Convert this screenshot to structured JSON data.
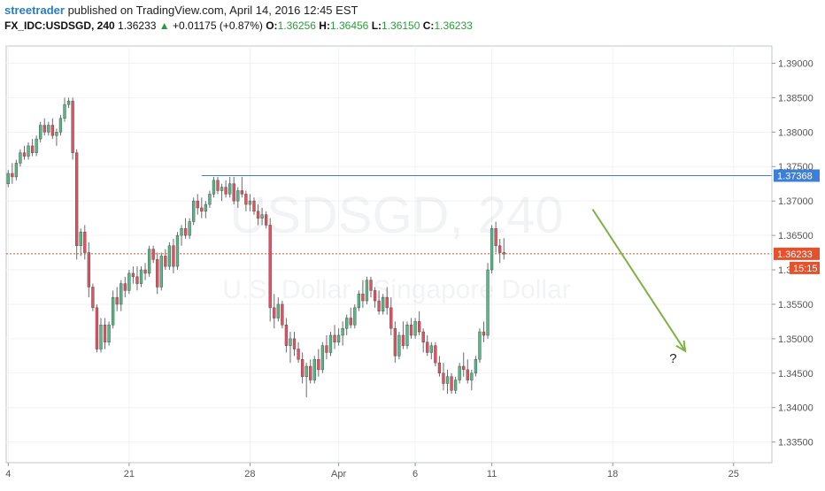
{
  "header": {
    "author": "streetrader",
    "published_text": "published on TradingView.com, April 14, 2016 12:45 EST",
    "symbol": "FX_IDC:USDSGD, 240",
    "last": "1.36233",
    "change": "+0.01175 (+0.87%)",
    "open_label": "O:",
    "open": "1.36256",
    "high_label": "H:",
    "high": "1.36456",
    "low_label": "L:",
    "low": "1.36150",
    "close_label": "C:",
    "close": "1.36233"
  },
  "watermark": {
    "line1": "USDSGD, 240",
    "line2": "U.S. Dollar / Singapore Dollar"
  },
  "chart_data": {
    "type": "candlestick",
    "colors": {
      "up": "#53b987",
      "down": "#eb4d5c",
      "hline": "#3d7fd6",
      "price_line": "#e4512b",
      "arrow": "#7cb342"
    },
    "y_range": [
      1.332,
      1.3925
    ],
    "y_ticks": [
      {
        "v": 1.39,
        "label": "1.39000"
      },
      {
        "v": 1.385,
        "label": "1.38500"
      },
      {
        "v": 1.38,
        "label": "1.38000"
      },
      {
        "v": 1.375,
        "label": "1.37500"
      },
      {
        "v": 1.37,
        "label": "1.37000"
      },
      {
        "v": 1.365,
        "label": "1.36500"
      },
      {
        "v": 1.36,
        "label": "1.36000"
      },
      {
        "v": 1.355,
        "label": "1.35500"
      },
      {
        "v": 1.35,
        "label": "1.35000"
      },
      {
        "v": 1.345,
        "label": "1.34500"
      },
      {
        "v": 1.34,
        "label": "1.34000"
      },
      {
        "v": 1.335,
        "label": "1.33500"
      }
    ],
    "x_ticks": [
      {
        "i": 0,
        "label": "4"
      },
      {
        "i": 30,
        "label": "21"
      },
      {
        "i": 60,
        "label": "28"
      },
      {
        "i": 82,
        "label": "Apr"
      },
      {
        "i": 101,
        "label": "6"
      },
      {
        "i": 120,
        "label": "11"
      },
      {
        "i": 150,
        "label": "18"
      },
      {
        "i": 180,
        "label": "25"
      }
    ],
    "x_slots": 190,
    "horizontal_level": 1.37368,
    "horizontal_level_label": "1.37368",
    "horizontal_level_start": 48,
    "last_price": 1.36233,
    "last_price_label": "1.36233",
    "countdown": "15:15",
    "annotation_text": "?",
    "arrow": {
      "from_i": 145,
      "from_v": 1.3688,
      "to_i": 168,
      "to_v": 1.3482
    },
    "question_at": {
      "i": 165,
      "v": 1.3465
    },
    "ohlc": [
      [
        1.3725,
        1.3745,
        1.372,
        1.374
      ],
      [
        1.374,
        1.3755,
        1.3725,
        1.3735
      ],
      [
        1.3735,
        1.376,
        1.373,
        1.3755
      ],
      [
        1.3755,
        1.3775,
        1.375,
        1.377
      ],
      [
        1.377,
        1.378,
        1.376,
        1.3765
      ],
      [
        1.3765,
        1.3785,
        1.376,
        1.378
      ],
      [
        1.378,
        1.379,
        1.3765,
        1.377
      ],
      [
        1.377,
        1.3795,
        1.3765,
        1.379
      ],
      [
        1.379,
        1.3815,
        1.3785,
        1.381
      ],
      [
        1.381,
        1.382,
        1.3795,
        1.38
      ],
      [
        1.38,
        1.3815,
        1.3795,
        1.381
      ],
      [
        1.381,
        1.382,
        1.379,
        1.3795
      ],
      [
        1.3795,
        1.3805,
        1.378,
        1.38
      ],
      [
        1.38,
        1.3825,
        1.3795,
        1.382
      ],
      [
        1.382,
        1.385,
        1.3815,
        1.384
      ],
      [
        1.384,
        1.385,
        1.3835,
        1.3845
      ],
      [
        1.3845,
        1.385,
        1.376,
        1.377
      ],
      [
        1.377,
        1.3775,
        1.3615,
        1.3635
      ],
      [
        1.3635,
        1.366,
        1.362,
        1.3655
      ],
      [
        1.3655,
        1.3665,
        1.3615,
        1.3625
      ],
      [
        1.3625,
        1.364,
        1.356,
        1.3575
      ],
      [
        1.3575,
        1.358,
        1.354,
        1.3545
      ],
      [
        1.3545,
        1.355,
        1.348,
        1.3485
      ],
      [
        1.3485,
        1.353,
        1.348,
        1.352
      ],
      [
        1.352,
        1.353,
        1.3485,
        1.3495
      ],
      [
        1.3495,
        1.3525,
        1.349,
        1.352
      ],
      [
        1.352,
        1.357,
        1.3515,
        1.356
      ],
      [
        1.356,
        1.3575,
        1.354,
        1.355
      ],
      [
        1.355,
        1.3585,
        1.354,
        1.358
      ],
      [
        1.358,
        1.359,
        1.356,
        1.357
      ],
      [
        1.357,
        1.36,
        1.3565,
        1.3595
      ],
      [
        1.3595,
        1.3605,
        1.358,
        1.359
      ],
      [
        1.359,
        1.3605,
        1.357,
        1.358
      ],
      [
        1.358,
        1.3605,
        1.3575,
        1.36
      ],
      [
        1.36,
        1.361,
        1.3585,
        1.3595
      ],
      [
        1.3595,
        1.3635,
        1.359,
        1.363
      ],
      [
        1.363,
        1.3635,
        1.361,
        1.3615
      ],
      [
        1.3615,
        1.3625,
        1.3565,
        1.3575
      ],
      [
        1.3575,
        1.3625,
        1.357,
        1.362
      ],
      [
        1.362,
        1.363,
        1.36,
        1.3605
      ],
      [
        1.3605,
        1.364,
        1.36,
        1.3635
      ],
      [
        1.3635,
        1.3645,
        1.3595,
        1.3605
      ],
      [
        1.3605,
        1.3655,
        1.36,
        1.365
      ],
      [
        1.365,
        1.3665,
        1.3635,
        1.366
      ],
      [
        1.366,
        1.3675,
        1.3645,
        1.365
      ],
      [
        1.365,
        1.3675,
        1.3645,
        1.367
      ],
      [
        1.367,
        1.3705,
        1.3665,
        1.37
      ],
      [
        1.37,
        1.371,
        1.368,
        1.369
      ],
      [
        1.369,
        1.3705,
        1.3675,
        1.3685
      ],
      [
        1.3685,
        1.37,
        1.3675,
        1.3695
      ],
      [
        1.3695,
        1.3715,
        1.369,
        1.371
      ],
      [
        1.371,
        1.3735,
        1.3705,
        1.373
      ],
      [
        1.373,
        1.3735,
        1.371,
        1.3715
      ],
      [
        1.3715,
        1.3725,
        1.37,
        1.372
      ],
      [
        1.372,
        1.373,
        1.3705,
        1.371
      ],
      [
        1.371,
        1.3735,
        1.3705,
        1.3725
      ],
      [
        1.3725,
        1.3735,
        1.3695,
        1.37
      ],
      [
        1.37,
        1.372,
        1.369,
        1.3715
      ],
      [
        1.3715,
        1.3735,
        1.3705,
        1.371
      ],
      [
        1.371,
        1.3715,
        1.3685,
        1.3695
      ],
      [
        1.3695,
        1.371,
        1.3685,
        1.37
      ],
      [
        1.37,
        1.3705,
        1.368,
        1.3685
      ],
      [
        1.3685,
        1.3695,
        1.3665,
        1.3675
      ],
      [
        1.3675,
        1.369,
        1.3665,
        1.368
      ],
      [
        1.368,
        1.3685,
        1.366,
        1.3665
      ],
      [
        1.3665,
        1.3675,
        1.3525,
        1.3545
      ],
      [
        1.3545,
        1.3565,
        1.3515,
        1.353
      ],
      [
        1.353,
        1.356,
        1.3525,
        1.355
      ],
      [
        1.355,
        1.3555,
        1.3515,
        1.352
      ],
      [
        1.352,
        1.353,
        1.348,
        1.349
      ],
      [
        1.349,
        1.351,
        1.3465,
        1.35
      ],
      [
        1.35,
        1.351,
        1.3475,
        1.3485
      ],
      [
        1.3485,
        1.3495,
        1.3465,
        1.347
      ],
      [
        1.347,
        1.348,
        1.3435,
        1.3445
      ],
      [
        1.3445,
        1.3465,
        1.3415,
        1.346
      ],
      [
        1.346,
        1.347,
        1.3435,
        1.344
      ],
      [
        1.344,
        1.3475,
        1.3435,
        1.347
      ],
      [
        1.347,
        1.3485,
        1.3445,
        1.3455
      ],
      [
        1.3455,
        1.3495,
        1.345,
        1.349
      ],
      [
        1.349,
        1.3505,
        1.347,
        1.348
      ],
      [
        1.348,
        1.351,
        1.3475,
        1.3505
      ],
      [
        1.3505,
        1.352,
        1.3485,
        1.3495
      ],
      [
        1.3495,
        1.3515,
        1.349,
        1.3505
      ],
      [
        1.3505,
        1.3525,
        1.349,
        1.3515
      ],
      [
        1.3515,
        1.3535,
        1.3505,
        1.353
      ],
      [
        1.353,
        1.3545,
        1.3515,
        1.352
      ],
      [
        1.352,
        1.355,
        1.3515,
        1.3545
      ],
      [
        1.3545,
        1.357,
        1.354,
        1.3565
      ],
      [
        1.3565,
        1.3585,
        1.3545,
        1.3555
      ],
      [
        1.3555,
        1.359,
        1.355,
        1.3585
      ],
      [
        1.3585,
        1.359,
        1.356,
        1.357
      ],
      [
        1.357,
        1.3575,
        1.3545,
        1.3555
      ],
      [
        1.3555,
        1.357,
        1.3535,
        1.354
      ],
      [
        1.354,
        1.3565,
        1.3535,
        1.356
      ],
      [
        1.356,
        1.3575,
        1.3535,
        1.3545
      ],
      [
        1.3545,
        1.356,
        1.3505,
        1.3515
      ],
      [
        1.3515,
        1.3525,
        1.3465,
        1.3475
      ],
      [
        1.3475,
        1.351,
        1.347,
        1.3505
      ],
      [
        1.3505,
        1.3525,
        1.3485,
        1.349
      ],
      [
        1.349,
        1.3525,
        1.3485,
        1.352
      ],
      [
        1.352,
        1.353,
        1.35,
        1.3505
      ],
      [
        1.3505,
        1.353,
        1.35,
        1.3525
      ],
      [
        1.3525,
        1.354,
        1.3505,
        1.351
      ],
      [
        1.351,
        1.3515,
        1.348,
        1.3495
      ],
      [
        1.3495,
        1.3505,
        1.3475,
        1.348
      ],
      [
        1.348,
        1.3495,
        1.347,
        1.349
      ],
      [
        1.349,
        1.3495,
        1.346,
        1.3465
      ],
      [
        1.3465,
        1.3475,
        1.3445,
        1.345
      ],
      [
        1.345,
        1.3465,
        1.3425,
        1.3435
      ],
      [
        1.3435,
        1.3455,
        1.342,
        1.3445
      ],
      [
        1.3445,
        1.345,
        1.342,
        1.3425
      ],
      [
        1.3425,
        1.3445,
        1.342,
        1.344
      ],
      [
        1.344,
        1.3465,
        1.3435,
        1.346
      ],
      [
        1.346,
        1.348,
        1.3445,
        1.3455
      ],
      [
        1.3455,
        1.347,
        1.3435,
        1.344
      ],
      [
        1.344,
        1.3455,
        1.3425,
        1.345
      ],
      [
        1.345,
        1.3475,
        1.3445,
        1.347
      ],
      [
        1.347,
        1.3515,
        1.3465,
        1.351
      ],
      [
        1.351,
        1.3525,
        1.3495,
        1.3505
      ],
      [
        1.3505,
        1.361,
        1.35,
        1.36
      ],
      [
        1.36,
        1.3665,
        1.3595,
        1.366
      ],
      [
        1.366,
        1.367,
        1.3625,
        1.3635
      ],
      [
        1.3635,
        1.3645,
        1.361,
        1.3625
      ],
      [
        1.3625,
        1.3646,
        1.3615,
        1.3623
      ]
    ]
  }
}
